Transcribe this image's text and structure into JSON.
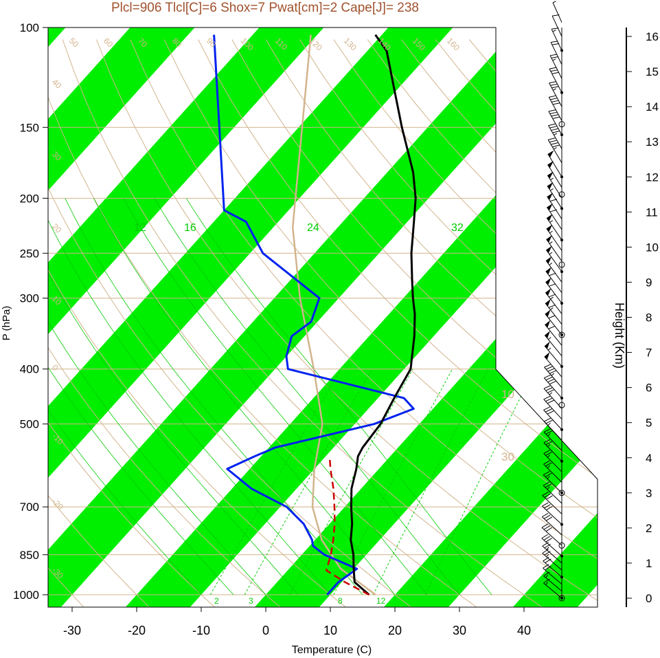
{
  "chart_data": {
    "type": "line",
    "title": "Plcl=906 Tlcl[C]=6 Shox=7 Pwat[cm]=2 Cape[J]= 238",
    "xlabel": "Temperature (C)",
    "ylabel": "P (hPa)",
    "y2label": "Height (Km)",
    "xlim": [
      -33.5,
      51
    ],
    "ylim": [
      1050,
      100
    ],
    "y_scale": "log",
    "x_ticks": [
      "-30",
      "-20",
      "-10",
      "0",
      "10",
      "20",
      "30",
      "40"
    ],
    "x_tick_values": [
      -30,
      -20,
      -10,
      0,
      10,
      20,
      30,
      40
    ],
    "y_ticks": [
      "100",
      "150",
      "200",
      "250",
      "300",
      "400",
      "500",
      "700",
      "850",
      "1000"
    ],
    "y_tick_values": [
      100,
      150,
      200,
      250,
      300,
      400,
      500,
      700,
      850,
      1000
    ],
    "height_ticks": [
      "0",
      "1",
      "2",
      "3",
      "4",
      "5",
      "6",
      "7",
      "8",
      "9",
      "10",
      "11",
      "12",
      "13",
      "14",
      "15",
      "16"
    ],
    "height_tick_values": [
      0,
      1,
      2,
      3,
      4,
      5,
      6,
      7,
      8,
      9,
      10,
      11,
      12,
      13,
      14,
      15,
      16
    ],
    "colors": {
      "isotherm_band": "#00ee00",
      "dry_adiabat": "#d2b48c",
      "moist_adiabat": "#00cc00",
      "mixing_ratio": "#00cc00",
      "temperature": "#000000",
      "dewpoint": "#0022ee",
      "parcel": "#cc0000",
      "title": "#a0522d"
    },
    "isotherm_labels": {
      "values": [
        "30",
        "20",
        "10",
        "0",
        "10",
        "30"
      ],
      "positions_p": [
        130,
        180,
        250,
        340,
        450,
        580
      ]
    },
    "dry_adiabat_labels": [
      "50",
      "60",
      "70",
      "80",
      "90",
      "100",
      "110",
      "120",
      "130",
      "140",
      "150",
      "160",
      "40",
      "30",
      "20",
      "10",
      "0",
      "-10",
      "-20",
      "-30"
    ],
    "moist_adiabat_labels": [
      "12",
      "16",
      "24",
      "32"
    ],
    "mixing_ratio_labels": [
      "2",
      "3",
      "8",
      "12"
    ],
    "series": [
      {
        "name": "Temperature",
        "p": [
          1000,
          950,
          900,
          850,
          800,
          750,
          700,
          650,
          600,
          570,
          550,
          500,
          450,
          400,
          350,
          320,
          300,
          280,
          250,
          220,
          200,
          180,
          150,
          130,
          110,
          103
        ],
        "t": [
          16,
          12,
          10,
          8,
          5.5,
          3.5,
          1,
          -1.5,
          -3.5,
          -5,
          -5.5,
          -6,
          -7.5,
          -9,
          -13,
          -16,
          -18.5,
          -21,
          -25,
          -29,
          -32,
          -36,
          -44,
          -50,
          -57,
          -61
        ]
      },
      {
        "name": "Dewpoint",
        "p": [
          1000,
          950,
          900,
          850,
          820,
          800,
          750,
          700,
          650,
          600,
          570,
          550,
          500,
          470,
          450,
          400,
          380,
          350,
          330,
          300,
          250,
          220,
          210,
          103
        ],
        "t": [
          9.5,
          9.5,
          10.5,
          3.5,
          0.5,
          -0.5,
          -4,
          -9,
          -17,
          -23.5,
          -21,
          -19,
          -7,
          -3,
          -6,
          -28,
          -30,
          -32,
          -31,
          -33,
          -48,
          -55,
          -60,
          -86
        ]
      },
      {
        "name": "Parcel",
        "p": [
          1000,
          950,
          906,
          850,
          800,
          750,
          700,
          650,
          600,
          570
        ],
        "t": [
          16,
          10.5,
          6,
          4.5,
          2.8,
          0.8,
          -1.6,
          -4.3,
          -7.5,
          -9.4
        ]
      },
      {
        "name": "Environment",
        "p": [
          1000,
          900,
          800,
          700,
          600,
          500,
          400,
          300,
          225,
          103
        ],
        "t": [
          17,
          8,
          1,
          -5,
          -10,
          -15,
          -24,
          -36,
          -47,
          -71
        ]
      }
    ],
    "wind_barbs": {
      "heights_km": [
        0,
        0.2,
        0.4,
        0.6,
        0.8,
        1.0,
        1.2,
        1.5,
        1.8,
        2.1,
        2.4,
        2.7,
        3.0,
        3.3,
        3.6,
        3.9,
        4.2,
        4.5,
        4.8,
        5.1,
        5.4,
        5.7,
        6.0,
        6.3,
        6.6,
        6.9,
        7.2,
        7.5,
        7.8,
        8.1,
        8.4,
        8.7,
        9.0,
        9.3,
        9.6,
        9.9,
        10.2,
        10.5,
        10.8,
        11.1,
        11.4,
        11.7,
        12.0,
        12.4,
        12.8,
        13.2,
        13.6,
        14.0,
        14.4,
        14.8,
        15.2,
        15.6,
        16.0,
        16.4
      ],
      "speeds_kt": [
        15,
        15,
        20,
        20,
        25,
        25,
        30,
        30,
        30,
        30,
        30,
        25,
        25,
        25,
        25,
        25,
        25,
        25,
        30,
        30,
        35,
        40,
        45,
        50,
        55,
        55,
        60,
        60,
        65,
        65,
        60,
        60,
        55,
        55,
        55,
        55,
        55,
        60,
        60,
        55,
        55,
        50,
        50,
        45,
        45,
        40,
        40,
        35,
        30,
        25,
        20,
        15,
        10,
        5
      ]
    }
  }
}
